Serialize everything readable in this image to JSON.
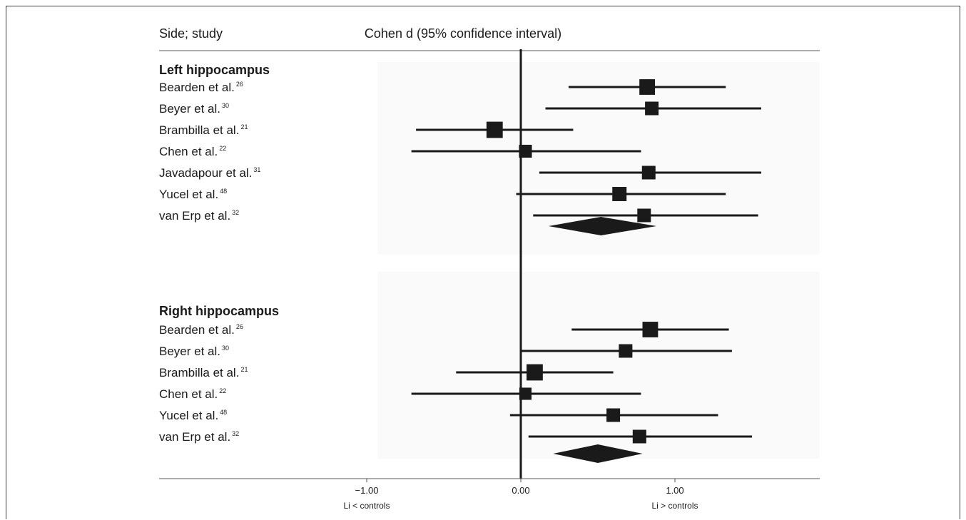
{
  "header": {
    "left": "Side; study",
    "center": "Cohen d (95% confidence interval)"
  },
  "chart_data": {
    "type": "forest",
    "title": "Cohen d (95% confidence interval)",
    "xlim": [
      -1.9,
      2.0
    ],
    "xticks": [
      {
        "value": -1.0,
        "label": "−1.00"
      },
      {
        "value": 0.0,
        "label": "0.00"
      },
      {
        "value": 1.0,
        "label": "1.00"
      }
    ],
    "x_direction_labels": {
      "negative": "Li < controls",
      "positive": "Li > controls"
    },
    "groups": [
      {
        "name": "Left hippocampus",
        "studies": [
          {
            "label": "Bearden et al.",
            "ref": "26",
            "d": 0.82,
            "ci": [
              0.31,
              1.33
            ],
            "weight": 1.15
          },
          {
            "label": "Beyer et al.",
            "ref": "30",
            "d": 0.85,
            "ci": [
              0.16,
              1.56
            ],
            "weight": 1.0
          },
          {
            "label": "Brambilla et al.",
            "ref": "21",
            "d": -0.17,
            "ci": [
              -0.68,
              0.34
            ],
            "weight": 1.2
          },
          {
            "label": "Chen et al.",
            "ref": "22",
            "d": 0.03,
            "ci": [
              -0.71,
              0.78
            ],
            "weight": 0.95
          },
          {
            "label": "Javadapour et al.",
            "ref": "31",
            "d": 0.83,
            "ci": [
              0.12,
              1.56
            ],
            "weight": 1.0
          },
          {
            "label": "Yucel et al.",
            "ref": "48",
            "d": 0.64,
            "ci": [
              -0.03,
              1.33
            ],
            "weight": 1.05
          },
          {
            "label": "van Erp et al.",
            "ref": "32",
            "d": 0.8,
            "ci": [
              0.08,
              1.54
            ],
            "weight": 1.0
          }
        ],
        "pooled": {
          "d": 0.52,
          "ci": [
            0.18,
            0.88
          ]
        }
      },
      {
        "name": "Right hippocampus",
        "studies": [
          {
            "label": "Bearden et al.",
            "ref": "26",
            "d": 0.84,
            "ci": [
              0.33,
              1.35
            ],
            "weight": 1.15
          },
          {
            "label": "Beyer et al.",
            "ref": "30",
            "d": 0.68,
            "ci": [
              0.0,
              1.37
            ],
            "weight": 1.0
          },
          {
            "label": "Brambilla et al.",
            "ref": "21",
            "d": 0.09,
            "ci": [
              -0.42,
              0.6
            ],
            "weight": 1.2
          },
          {
            "label": "Chen et al.",
            "ref": "22",
            "d": 0.03,
            "ci": [
              -0.71,
              0.78
            ],
            "weight": 0.9
          },
          {
            "label": "Yucel et al.",
            "ref": "48",
            "d": 0.6,
            "ci": [
              -0.07,
              1.28
            ],
            "weight": 1.0
          },
          {
            "label": "van Erp et al.",
            "ref": "32",
            "d": 0.77,
            "ci": [
              0.05,
              1.5
            ],
            "weight": 1.0
          }
        ],
        "pooled": {
          "d": 0.5,
          "ci": [
            0.21,
            0.79
          ]
        }
      }
    ]
  }
}
